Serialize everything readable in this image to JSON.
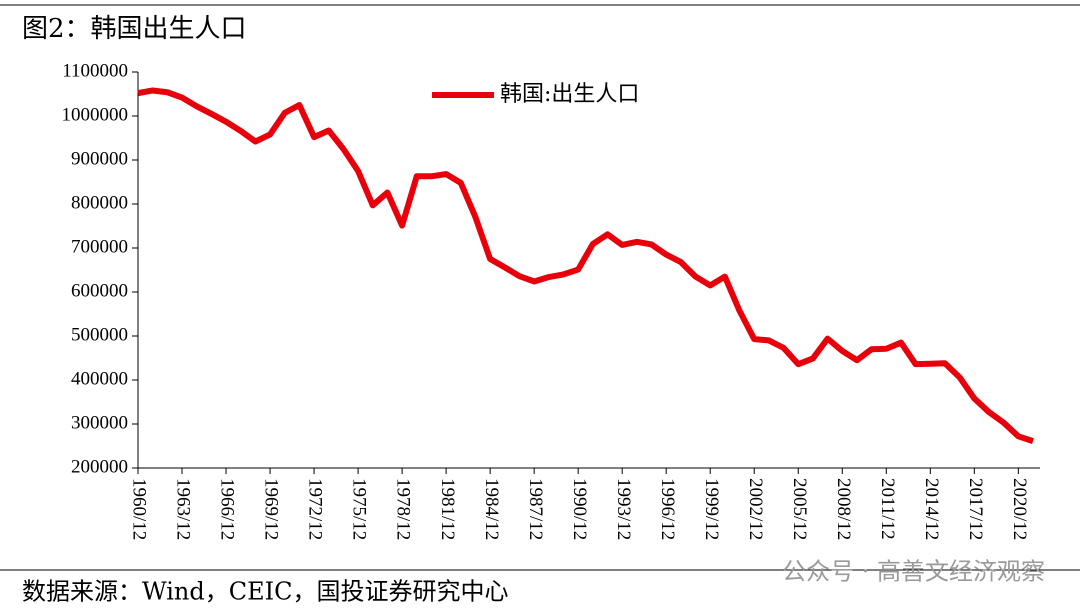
{
  "chart_data": {
    "type": "line",
    "title": "图2：韩国出生人口",
    "source": "数据来源：Wind，CEIC，国投证券研究中心",
    "watermark": "公众号 · 高善文经济观察",
    "categories": [
      "1960/12",
      null,
      null,
      "1963/12",
      null,
      null,
      "1966/12",
      null,
      null,
      "1969/12",
      null,
      null,
      "1972/12",
      null,
      null,
      "1975/12",
      null,
      null,
      "1978/12",
      null,
      null,
      "1981/12",
      null,
      null,
      "1984/12",
      null,
      null,
      "1987/12",
      null,
      null,
      "1990/12",
      null,
      null,
      "1993/12",
      null,
      null,
      "1996/12",
      null,
      null,
      "1999/12",
      null,
      null,
      "2002/12",
      null,
      null,
      "2005/12",
      null,
      null,
      "2008/12",
      null,
      null,
      "2011/12",
      null,
      null,
      "2014/12",
      null,
      null,
      "2017/12",
      null,
      null,
      "2020/12",
      null
    ],
    "series": [
      {
        "name": "韩国:出生人口",
        "color": "#e8000b",
        "values": [
          1052000,
          1058000,
          1054000,
          1042000,
          1022000,
          1005000,
          987000,
          966000,
          942000,
          958000,
          1007000,
          1025000,
          952000,
          967000,
          925000,
          875000,
          797000,
          826000,
          751000,
          863000,
          863000,
          868000,
          848000,
          770000,
          675000,
          656000,
          636000,
          624000,
          634000,
          640000,
          651000,
          709000,
          731000,
          707000,
          714000,
          708000,
          685000,
          668000,
          635000,
          615000,
          635000,
          557000,
          493000,
          490000,
          473000,
          436000,
          449000,
          494000,
          466000,
          445000,
          470000,
          471000,
          485000,
          436000,
          437000,
          438000,
          406000,
          358000,
          327000,
          303000,
          272000,
          261000
        ]
      }
    ],
    "ylim": [
      200000,
      1100000
    ],
    "yticks": [
      200000,
      300000,
      400000,
      500000,
      600000,
      700000,
      800000,
      900000,
      1000000,
      1100000
    ],
    "legend": "top"
  }
}
